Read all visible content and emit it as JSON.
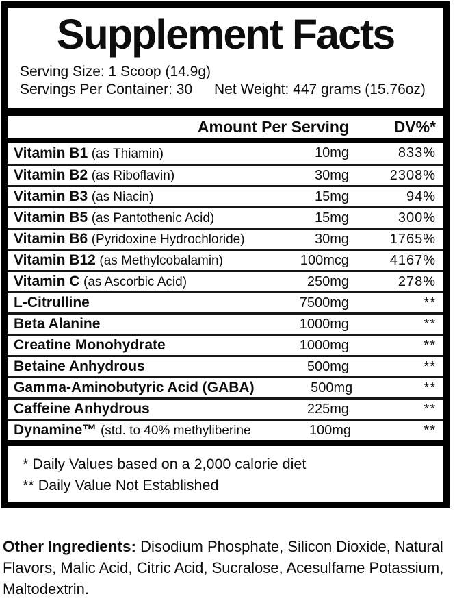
{
  "header": {
    "title": "Supplement Facts",
    "serving_size": "Serving Size: 1 Scoop (14.9g)",
    "servings_per_container": "Servings Per Container: 30",
    "net_weight": "Net Weight: 447 grams (15.76oz)"
  },
  "table": {
    "columns": {
      "amount": "Amount Per Serving",
      "dv": "DV%*"
    },
    "rows": [
      {
        "name": "Vitamin B1",
        "detail": "(as Thiamin)",
        "amount": "10mg",
        "dv": "833%"
      },
      {
        "name": "Vitamin B2",
        "detail": "(as Riboflavin)",
        "amount": "30mg",
        "dv": "2308%"
      },
      {
        "name": "Vitamin B3",
        "detail": "(as Niacin)",
        "amount": "15mg",
        "dv": "94%"
      },
      {
        "name": "Vitamin B5",
        "detail": "(as Pantothenic Acid)",
        "amount": "15mg",
        "dv": "300%"
      },
      {
        "name": "Vitamin B6",
        "detail": "(Pyridoxine Hydrochloride)",
        "amount": "30mg",
        "dv": "1765%"
      },
      {
        "name": "Vitamin B12",
        "detail": "(as Methylcobalamin)",
        "amount": "100mcg",
        "dv": "4167%"
      },
      {
        "name": "Vitamin C",
        "detail": "(as Ascorbic Acid)",
        "amount": "250mg",
        "dv": "278%"
      },
      {
        "name": "L-Citrulline",
        "detail": "",
        "amount": "7500mg",
        "dv": "**"
      },
      {
        "name": "Beta Alanine",
        "detail": "",
        "amount": "1000mg",
        "dv": "**"
      },
      {
        "name": "Creatine Monohydrate",
        "detail": "",
        "amount": "1000mg",
        "dv": "**"
      },
      {
        "name": "Betaine Anhydrous",
        "detail": "",
        "amount": "500mg",
        "dv": "**"
      },
      {
        "name": "Gamma-Aminobutyric Acid (GABA)",
        "detail": "",
        "amount": "500mg",
        "dv": "**"
      },
      {
        "name": "Caffeine Anhydrous",
        "detail": "",
        "amount": "225mg",
        "dv": "**"
      },
      {
        "name": "Dynamine™",
        "detail": "(std. to 40% methyliberine",
        "amount": "100mg",
        "dv": "**"
      }
    ]
  },
  "footnotes": [
    "* Daily Values based on a 2,000 calorie diet",
    "** Daily Value Not Established"
  ],
  "other_ingredients": {
    "label": "Other Ingredients:",
    "text": "Disodium Phosphate, Silicon Dioxide, Natural Flavors, Malic Acid, Citric Acid, Sucralose, Acesulfame Potassium, Maltodextrin."
  },
  "colors": {
    "border": "#000000",
    "text": "#0d0d0d",
    "background": "#ffffff"
  }
}
